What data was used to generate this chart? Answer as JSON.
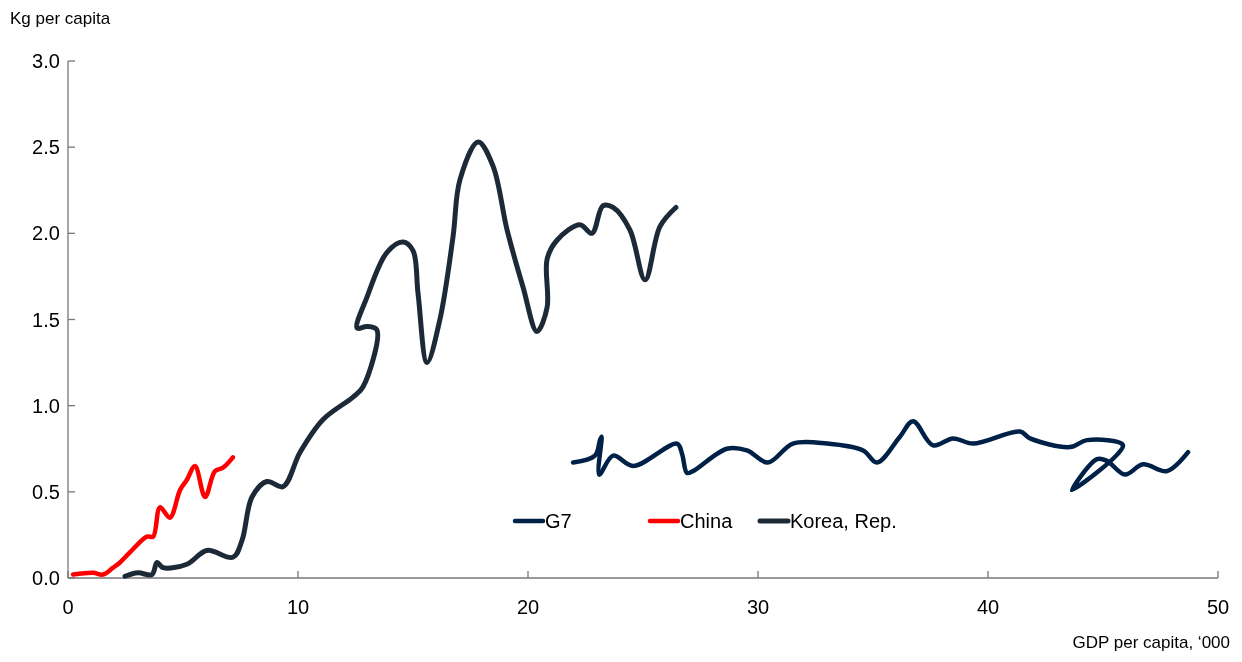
{
  "chart_data": {
    "type": "line",
    "xlabel": "GDP per capita, ‘000",
    "ylabel": "Kg per capita",
    "xlim": [
      0,
      50
    ],
    "xticks": [
      0,
      10,
      20,
      30,
      40,
      50
    ],
    "ylim": [
      0,
      3
    ],
    "yticks": [
      {
        "value": 0,
        "label": "0.0"
      },
      {
        "value": 0.5,
        "label": "0.5"
      },
      {
        "value": 1,
        "label": "1.0"
      },
      {
        "value": 1.5,
        "label": "1.5"
      },
      {
        "value": 2,
        "label": "2.0"
      },
      {
        "value": 2.5,
        "label": "2.5"
      },
      {
        "value": 3,
        "label": "3.0"
      }
    ],
    "grid": false,
    "legend": "bottom",
    "line_style": "solid",
    "marker": "none",
    "series": [
      {
        "name": "G7",
        "color": "#002147",
        "x": [
          21.96,
          22.91,
          23.13,
          23.2,
          23.1,
          23.7,
          24.57,
          26.48,
          26.7,
          26.91,
          27.17,
          28.65,
          29.52,
          30.43,
          31.52,
          33.0,
          34.57,
          35.17,
          36.17,
          36.74,
          37.61,
          38.48,
          39.35,
          41.39,
          41.83,
          43.57,
          44.3,
          45.87,
          43.65,
          44.74,
          45.17,
          45.96,
          46.74,
          47.78,
          48.7
        ],
        "values": [
          0.67,
          0.71,
          0.8,
          0.82,
          0.6,
          0.71,
          0.65,
          0.78,
          0.72,
          0.61,
          0.62,
          0.75,
          0.74,
          0.67,
          0.78,
          0.78,
          0.74,
          0.67,
          0.82,
          0.91,
          0.77,
          0.81,
          0.78,
          0.85,
          0.81,
          0.76,
          0.8,
          0.77,
          0.51,
          0.69,
          0.68,
          0.6,
          0.66,
          0.62,
          0.73
        ]
      },
      {
        "name": "China",
        "color": "#ff0000",
        "x": [
          0.22,
          1.09,
          1.52,
          1.96,
          2.26,
          2.7,
          3.43,
          3.7,
          4.0,
          4.43,
          4.87,
          5.17,
          5.52,
          5.96,
          6.39,
          6.74,
          7.17
        ],
        "values": [
          0.02,
          0.03,
          0.02,
          0.06,
          0.09,
          0.15,
          0.24,
          0.24,
          0.41,
          0.35,
          0.51,
          0.57,
          0.65,
          0.47,
          0.62,
          0.64,
          0.7
        ]
      },
      {
        "name": "Korea, Rep.",
        "color": "#1f2a38",
        "x": [
          2.48,
          3.04,
          3.65,
          3.87,
          4.13,
          5.17,
          6.04,
          7.17,
          7.57,
          8.0,
          8.65,
          9.35,
          10.09,
          11.09,
          12.39,
          12.83,
          13.43,
          13.0,
          12.57,
          13.0,
          13.87,
          14.57,
          15.0,
          15.22,
          15.61,
          16.17,
          16.74,
          17.04,
          17.83,
          18.48,
          19.09,
          19.78,
          20.39,
          20.83,
          20.83,
          21.26,
          22.26,
          22.78,
          23.26,
          23.7,
          24.43,
          25.09,
          25.74,
          26.43
        ],
        "values": [
          0.01,
          0.03,
          0.02,
          0.09,
          0.06,
          0.08,
          0.16,
          0.12,
          0.22,
          0.47,
          0.56,
          0.53,
          0.73,
          0.92,
          1.05,
          1.11,
          1.44,
          1.46,
          1.45,
          1.63,
          1.89,
          1.95,
          1.9,
          1.65,
          1.25,
          1.5,
          1.98,
          2.31,
          2.53,
          2.39,
          2.02,
          1.69,
          1.43,
          1.57,
          1.85,
          1.96,
          2.05,
          2.0,
          2.16,
          2.15,
          2.02,
          1.73,
          2.04,
          2.15
        ]
      }
    ]
  }
}
